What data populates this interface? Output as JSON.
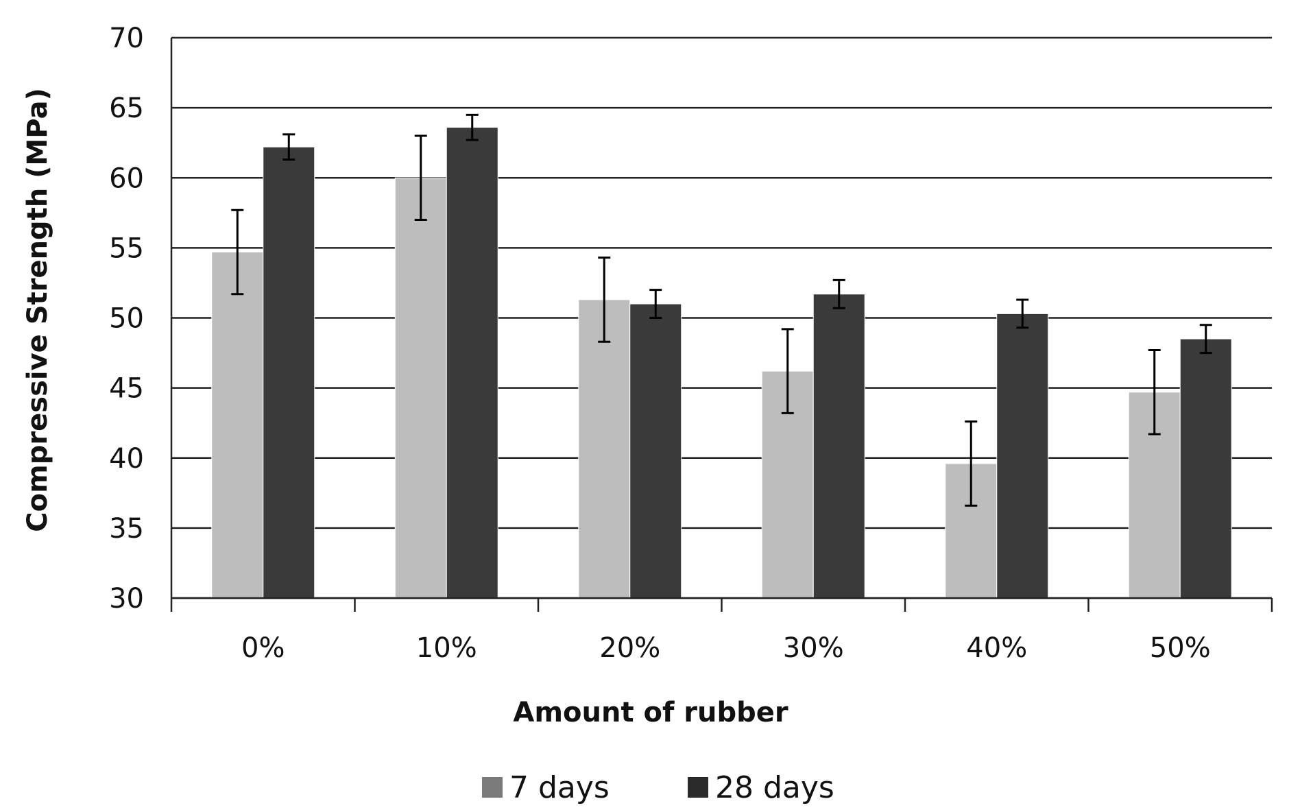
{
  "chart_data": {
    "type": "bar",
    "title": "",
    "xlabel": "Amount of rubber",
    "ylabel": "Compressive Strength (MPa)",
    "categories": [
      "0%",
      "10%",
      "20%",
      "30%",
      "40%",
      "50%"
    ],
    "ylim": [
      30,
      70
    ],
    "yticks": [
      30,
      35,
      40,
      45,
      50,
      55,
      60,
      65,
      70
    ],
    "grid": true,
    "legend_position": "bottom",
    "series": [
      {
        "name": "7 days",
        "color": "#bdbdbd",
        "legend_color": "#7a7a7a",
        "values": [
          54.7,
          60.0,
          51.3,
          46.2,
          39.6,
          44.7
        ],
        "error": [
          3.0,
          3.0,
          3.0,
          3.0,
          3.0,
          3.0
        ]
      },
      {
        "name": "28 days",
        "color": "#3a3a3a",
        "legend_color": "#2a2a2a",
        "values": [
          62.2,
          63.6,
          51.0,
          51.7,
          50.3,
          48.5
        ],
        "error": [
          0.9,
          0.9,
          1.0,
          1.0,
          1.0,
          1.0
        ]
      }
    ]
  }
}
